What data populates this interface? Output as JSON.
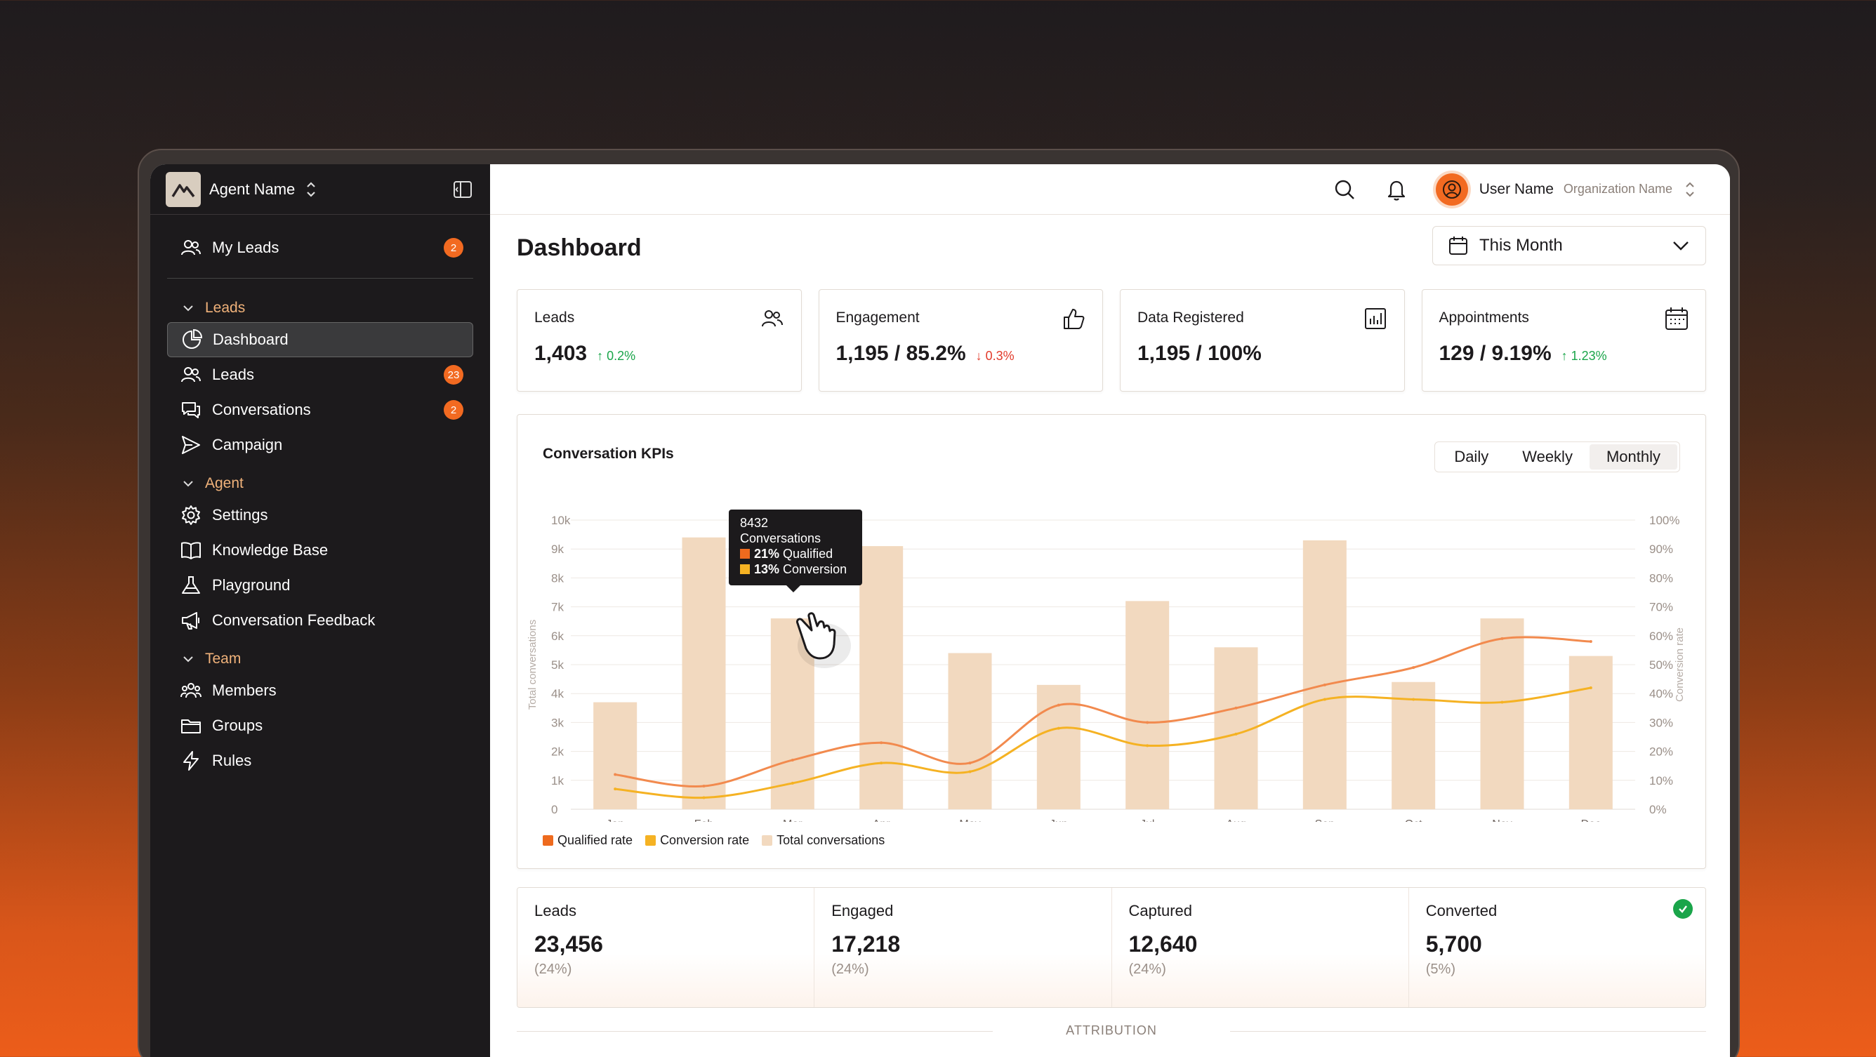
{
  "sidebar": {
    "agent_name": "Agent Name",
    "my_leads": {
      "label": "My Leads",
      "badge": "2"
    },
    "sections": [
      {
        "title": "Leads",
        "items": [
          {
            "label": "Dashboard",
            "icon": "pie-chart-icon",
            "active": true
          },
          {
            "label": "Leads",
            "icon": "users-icon",
            "badge": "23"
          },
          {
            "label": "Conversations",
            "icon": "chat-icon",
            "badge": "2"
          },
          {
            "label": "Campaign",
            "icon": "send-icon"
          }
        ]
      },
      {
        "title": "Agent",
        "items": [
          {
            "label": "Settings",
            "icon": "gear-icon"
          },
          {
            "label": "Knowledge Base",
            "icon": "book-icon"
          },
          {
            "label": "Playground",
            "icon": "flask-icon"
          },
          {
            "label": "Conversation Feedback",
            "icon": "megaphone-icon"
          }
        ]
      },
      {
        "title": "Team",
        "items": [
          {
            "label": "Members",
            "icon": "team-icon"
          },
          {
            "label": "Groups",
            "icon": "folder-icon"
          },
          {
            "label": "Rules",
            "icon": "bolt-icon"
          }
        ]
      }
    ]
  },
  "topbar": {
    "user_name": "User Name",
    "org_name": "Organization Name"
  },
  "page": {
    "title": "Dashboard",
    "date_range": "This Month"
  },
  "kpis": [
    {
      "label": "Leads",
      "value": "1,403",
      "delta": "↑ 0.2%",
      "dir": "up",
      "icon": "users-icon"
    },
    {
      "label": "Engagement",
      "value": "1,195 / 85.2%",
      "delta": "↓ 0.3%",
      "dir": "down",
      "icon": "thumbs-up-icon"
    },
    {
      "label": "Data Registered",
      "value": "1,195 / 100%",
      "delta": "",
      "dir": "",
      "icon": "bar-chart-icon"
    },
    {
      "label": "Appointments",
      "value": "129 / 9.19%",
      "delta": "↑ 1.23%",
      "dir": "up",
      "icon": "calendar-icon"
    }
  ],
  "chart_card": {
    "title": "Conversation KPIs",
    "periods": [
      "Daily",
      "Weekly",
      "Monthly"
    ],
    "selected_period": "Monthly"
  },
  "tooltip": {
    "value": "8432",
    "label": "Conversations",
    "qualified_pct": "21%",
    "qualified_label": "Qualified",
    "conversion_pct": "13%",
    "conversion_label": "Conversion"
  },
  "chart_data": {
    "type": "bar",
    "categories": [
      "Jan",
      "Feb",
      "Mar",
      "Apr",
      "May",
      "Jun",
      "Jul",
      "Aug",
      "Sep",
      "Oct",
      "Nov",
      "Dec"
    ],
    "ylabel": "Total conversations",
    "y2label": "Conversion rate",
    "ylim": [
      0,
      10000
    ],
    "y2lim": [
      0,
      100
    ],
    "yticks": [
      "0",
      "1k",
      "2k",
      "3k",
      "4k",
      "5k",
      "6k",
      "7k",
      "8k",
      "9k",
      "10k"
    ],
    "y2ticks": [
      "0%",
      "10%",
      "20%",
      "30%",
      "40%",
      "50%",
      "60%",
      "70%",
      "80%",
      "90%",
      "100%"
    ],
    "series": [
      {
        "name": "Total conversations",
        "type": "bar",
        "axis": "left",
        "values": [
          3700,
          9400,
          6600,
          9100,
          5400,
          4300,
          7200,
          5600,
          9300,
          4400,
          6600,
          5300
        ],
        "color": "#f2d9bf"
      },
      {
        "name": "Qualified rate",
        "type": "line",
        "axis": "right",
        "values": [
          12,
          8,
          17,
          23,
          16,
          36,
          30,
          35,
          43,
          49,
          59,
          58
        ],
        "color": "#f28a4e"
      },
      {
        "name": "Conversion rate",
        "type": "line",
        "axis": "right",
        "values": [
          7,
          4,
          9,
          16,
          13,
          28,
          22,
          26,
          38,
          38,
          37,
          42
        ],
        "color": "#f5b223"
      }
    ],
    "legend": [
      {
        "label": "Qualified rate",
        "color": "#ee6a1e"
      },
      {
        "label": "Conversion rate",
        "color": "#f5b223"
      },
      {
        "label": "Total conversations",
        "color": "#f2d9bf"
      }
    ]
  },
  "funnel": [
    {
      "label": "Leads",
      "value": "23,456",
      "pct": "(24%)"
    },
    {
      "label": "Engaged",
      "value": "17,218",
      "pct": "(24%)"
    },
    {
      "label": "Captured",
      "value": "12,640",
      "pct": "(24%)"
    },
    {
      "label": "Converted",
      "value": "5,700",
      "pct": "(5%)"
    }
  ],
  "attribution_label": "ATTRIBUTION"
}
